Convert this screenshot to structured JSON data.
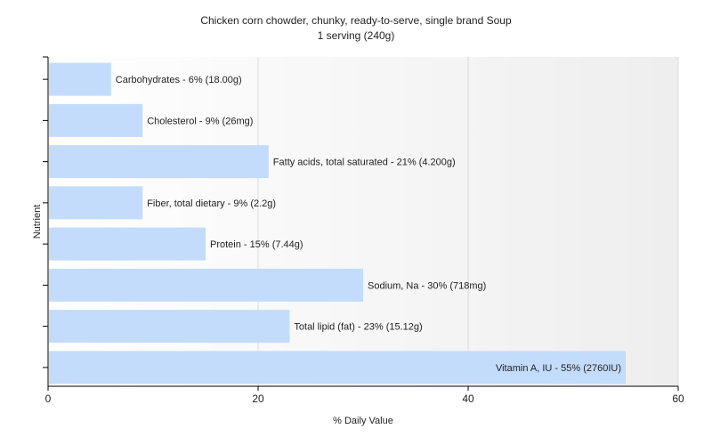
{
  "chart_data": {
    "type": "bar",
    "orientation": "horizontal",
    "title": "Chicken corn chowder, chunky, ready-to-serve, single brand Soup",
    "subtitle": "1 serving (240g)",
    "xlabel": "% Daily Value",
    "ylabel": "Nutrient",
    "xlim": [
      0,
      60
    ],
    "xticks": [
      0,
      20,
      40,
      60
    ],
    "grid": true,
    "bar_color": "#c3dcfb",
    "categories": [
      "Carbohydrates",
      "Cholesterol",
      "Fatty acids, total saturated",
      "Fiber, total dietary",
      "Protein",
      "Sodium, Na",
      "Total lipid (fat)",
      "Vitamin A, IU"
    ],
    "values": [
      6,
      9,
      21,
      9,
      15,
      30,
      23,
      55
    ],
    "labels": [
      "Carbohydrates - 6% (18.00g)",
      "Cholesterol - 9% (26mg)",
      "Fatty acids, total saturated - 21% (4.200g)",
      "Fiber, total dietary - 9% (2.2g)",
      "Protein - 15% (7.44g)",
      "Sodium, Na - 30% (718mg)",
      "Total lipid (fat) - 23% (15.12g)",
      "Vitamin A, IU - 55% (2760IU)"
    ]
  }
}
